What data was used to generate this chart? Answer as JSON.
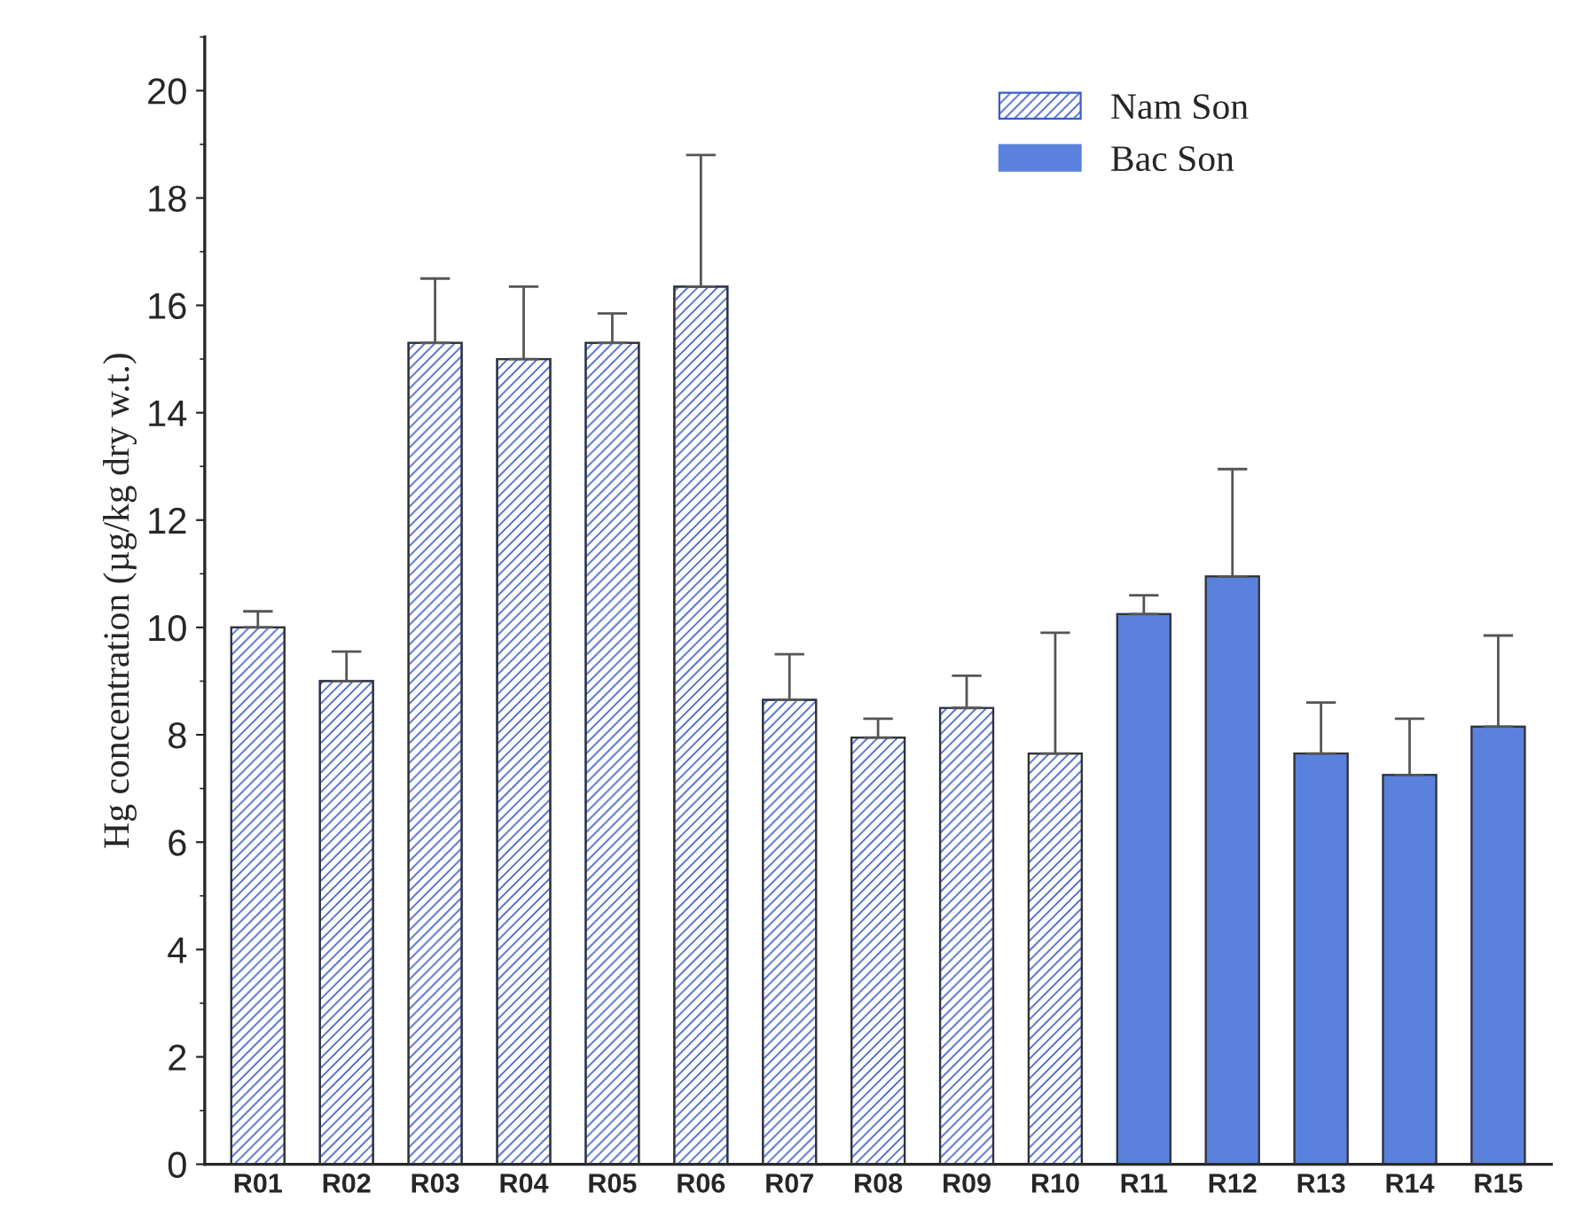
{
  "chart_data": {
    "type": "bar",
    "ylabel": "Hg concentration (µg/kg dry w.t.)",
    "categories": [
      "R01",
      "R02",
      "R03",
      "R04",
      "R05",
      "R06",
      "R07",
      "R08",
      "R09",
      "R10",
      "R11",
      "R12",
      "R13",
      "R14",
      "R15"
    ],
    "series": [
      {
        "name": "Nam Son",
        "color": "#3a5cc4",
        "values": [
          10.0,
          9.0,
          15.3,
          15.0,
          15.3,
          16.35,
          8.65,
          7.95,
          8.5,
          7.65,
          null,
          null,
          null,
          null,
          null
        ],
        "errors": [
          [
            10.0,
            10.3
          ],
          [
            9.0,
            9.55
          ],
          [
            15.3,
            16.5
          ],
          [
            15.0,
            16.35
          ],
          [
            15.3,
            15.85
          ],
          [
            16.35,
            18.8
          ],
          [
            8.65,
            9.5
          ],
          [
            7.95,
            8.3
          ],
          [
            8.5,
            9.1
          ],
          [
            7.65,
            9.9
          ],
          null,
          null,
          null,
          null,
          null
        ]
      },
      {
        "name": "Bac Son",
        "color": "#5a82dc",
        "values": [
          null,
          null,
          null,
          null,
          null,
          null,
          null,
          null,
          null,
          null,
          10.25,
          10.95,
          7.65,
          7.25,
          8.15
        ],
        "errors": [
          null,
          null,
          null,
          null,
          null,
          null,
          null,
          null,
          null,
          null,
          [
            10.25,
            10.6
          ],
          [
            10.95,
            12.95
          ],
          [
            7.65,
            8.6
          ],
          [
            7.25,
            8.3
          ],
          [
            8.15,
            9.85
          ]
        ]
      }
    ],
    "ylim": [
      0,
      21
    ],
    "yticks": [
      0,
      2,
      4,
      6,
      8,
      10,
      12,
      14,
      16,
      18,
      20
    ],
    "grid": false,
    "legend": "top right"
  }
}
